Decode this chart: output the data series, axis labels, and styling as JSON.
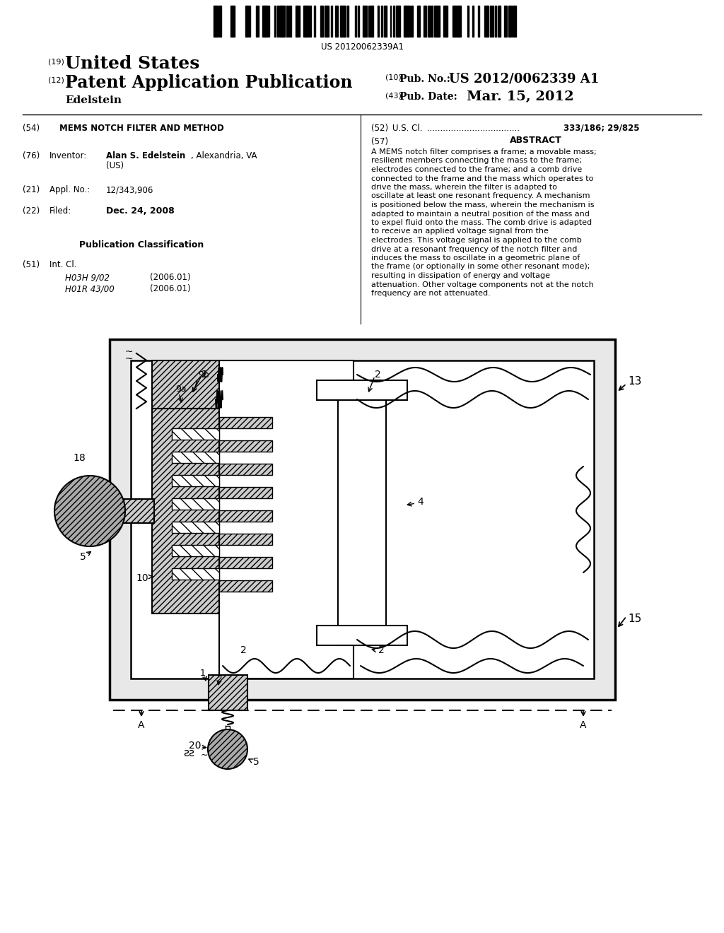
{
  "bg_color": "#ffffff",
  "barcode_text": "US 20120062339A1",
  "label19": "(19)",
  "united_states": "United States",
  "label12": "(12)",
  "patent_app_pub": "Patent Application Publication",
  "label10": "(10)",
  "pub_no_label": "Pub. No.:",
  "pub_no": "US 2012/0062339 A1",
  "inventor_name": "Edelstein",
  "label43": "(43)",
  "pub_date_label": "Pub. Date:",
  "pub_date": "Mar. 15, 2012",
  "label54": "(54)",
  "title": "MEMS NOTCH FILTER AND METHOD",
  "label52": "(52)",
  "us_cl_label": "U.S. Cl.",
  "us_cl_val": "333/186; 29/825",
  "label57": "(57)",
  "abstract_title": "ABSTRACT",
  "abstract_text": "A MEMS notch filter comprises a frame; a movable mass; resilient members connecting the mass to the frame; electrodes connected to the frame; and a comb drive connected to the frame and the mass which operates to drive the mass, wherein the filter is adapted to oscillate at least one resonant frequency. A mechanism is positioned below the mass, wherein the mechanism is adapted to maintain a neutral position of the mass and to expel fluid onto the mass. The comb drive is adapted to receive an applied voltage signal from the electrodes. This voltage signal is applied to the comb drive at a resonant frequency of the notch filter and induces the mass to oscillate in a geometric plane of the frame (or optionally in some other resonant mode); resulting in dissipation of energy and voltage attenuation. Other voltage components not at the notch frequency are not attenuated.",
  "label76": "(76)",
  "inventor_label": "Inventor:",
  "label21": "(21)",
  "appl_no_label": "Appl. No.:",
  "appl_no": "12/343,906",
  "label22": "(22)",
  "filed_label": "Filed:",
  "filed_date": "Dec. 24, 2008",
  "pub_class_title": "Publication Classification",
  "label51": "(51)",
  "int_cl_label": "Int. Cl.",
  "int_cl1": "H03H 9/02",
  "int_cl1_date": "(2006.01)",
  "int_cl2": "H01R 43/00",
  "int_cl2_date": "(2006.01)"
}
